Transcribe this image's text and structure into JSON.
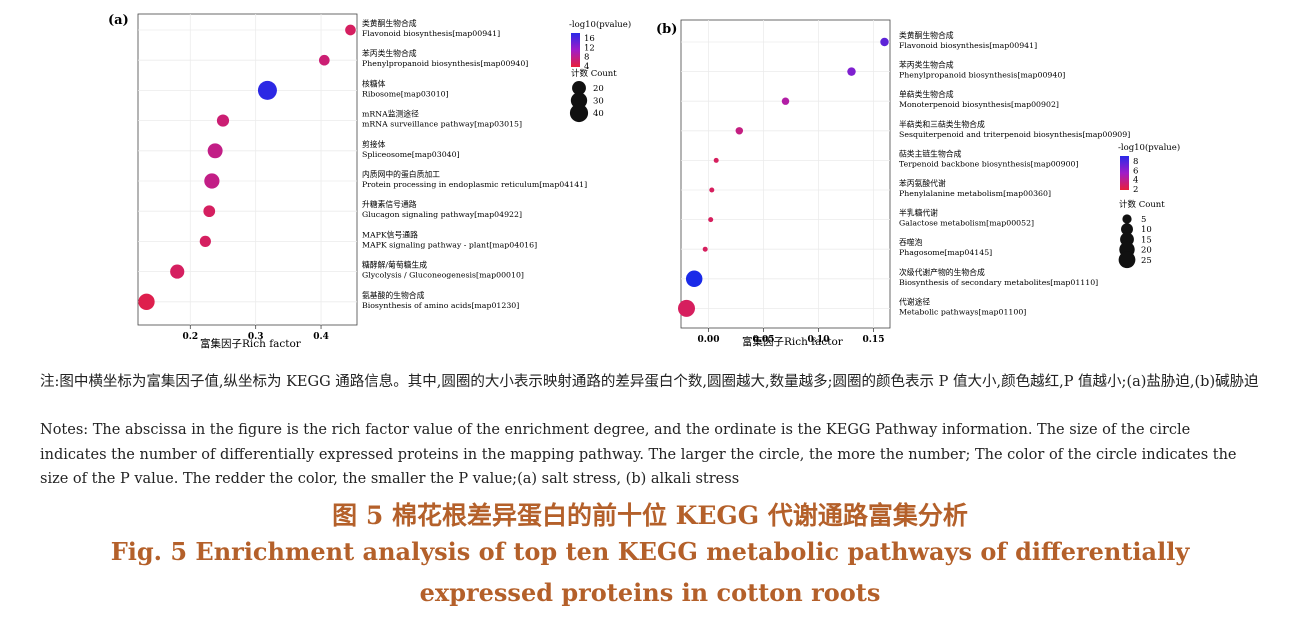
{
  "chart_data": [
    {
      "panel": "(a)",
      "type": "scatter",
      "xlabel": "富集因子Rich factor",
      "xticks": [
        "0.2",
        "0.3",
        "0.4"
      ],
      "xlim": [
        0.12,
        0.455
      ],
      "categories": [
        {
          "zh": "类黄酮生物合成",
          "en": "Flavonoid biosynthesis[map00941]"
        },
        {
          "zh": "苯丙类生物合成",
          "en": "Phenylpropanoid biosynthesis[map00940]"
        },
        {
          "zh": "核糖体",
          "en": "Ribosome[map03010]"
        },
        {
          "zh": "mRNA监测途径",
          "en": "mRNA surveillance pathway[map03015]"
        },
        {
          "zh": "剪接体",
          "en": "Spliceosome[map03040]"
        },
        {
          "zh": "内质网中的蛋白质加工",
          "en": "Protein processing in endoplasmic reticulum[map04141]"
        },
        {
          "zh": "升糖素信号通路",
          "en": "Glucagon signaling pathway[map04922]"
        },
        {
          "zh": "MAPK信号通路",
          "en": "MAPK signaling pathway - plant[map04016]"
        },
        {
          "zh": "糖酵解/葡萄糖生成",
          "en": "Glycolysis / Gluconeogenesis[map00010]"
        },
        {
          "zh": "氨基酸的生物合成",
          "en": "Biosynthesis of amino acids[map01230]"
        }
      ],
      "points": [
        {
          "x": 0.445,
          "count": 12,
          "neglog10p": 5
        },
        {
          "x": 0.405,
          "count": 12,
          "neglog10p": 6
        },
        {
          "x": 0.318,
          "count": 45,
          "neglog10p": 17
        },
        {
          "x": 0.25,
          "count": 15,
          "neglog10p": 6
        },
        {
          "x": 0.238,
          "count": 24,
          "neglog10p": 7
        },
        {
          "x": 0.233,
          "count": 25,
          "neglog10p": 7
        },
        {
          "x": 0.229,
          "count": 14,
          "neglog10p": 5
        },
        {
          "x": 0.223,
          "count": 13,
          "neglog10p": 5
        },
        {
          "x": 0.18,
          "count": 21,
          "neglog10p": 5
        },
        {
          "x": 0.133,
          "count": 30,
          "neglog10p": 4
        }
      ],
      "color_legend": {
        "title": "-log10(pvalue)",
        "ticks": [
          "16",
          "12",
          "8",
          "4"
        ],
        "min": 3,
        "max": 18
      },
      "size_legend": {
        "title": "计数 Count",
        "values": [
          20,
          30,
          40
        ]
      }
    },
    {
      "panel": "(b)",
      "type": "scatter",
      "xlabel": "富集因子Rich factor",
      "xticks": [
        "0.00",
        "0.05",
        "0.10",
        "0.15"
      ],
      "xlim": [
        -0.025,
        0.165
      ],
      "categories": [
        {
          "zh": "类黄酮生物合成",
          "en": "Flavonoid biosynthesis[map00941]"
        },
        {
          "zh": "苯丙类生物合成",
          "en": "Phenylpropanoid biosynthesis[map00940]"
        },
        {
          "zh": "单萜类生物合成",
          "en": "Monoterpenoid biosynthesis[map00902]"
        },
        {
          "zh": "半萜类和三萜类生物合成",
          "en": "Sesquiterpenoid and triterpenoid biosynthesis[map00909]"
        },
        {
          "zh": "萜类主链生物合成",
          "en": "Terpenoid backbone biosynthesis[map00900]"
        },
        {
          "zh": "苯丙氨酸代谢",
          "en": "Phenylalanine metabolism[map00360]"
        },
        {
          "zh": "半乳糖代谢",
          "en": "Galactose metabolism[map00052]"
        },
        {
          "zh": "吞噬泡",
          "en": "Phagosome[map04145]"
        },
        {
          "zh": "次级代谢产物的生物合成",
          "en": "Biosynthesis of secondary metabolites[map01110]"
        },
        {
          "zh": "代谢途径",
          "en": "Metabolic pathways[map01100]"
        }
      ],
      "points": [
        {
          "x": 0.16,
          "count": 4,
          "neglog10p": 7
        },
        {
          "x": 0.13,
          "count": 4,
          "neglog10p": 6
        },
        {
          "x": 0.07,
          "count": 3,
          "neglog10p": 4
        },
        {
          "x": 0.028,
          "count": 3,
          "neglog10p": 3
        },
        {
          "x": 0.007,
          "count": 2,
          "neglog10p": 2
        },
        {
          "x": 0.003,
          "count": 2,
          "neglog10p": 2
        },
        {
          "x": 0.002,
          "count": 2,
          "neglog10p": 2
        },
        {
          "x": -0.003,
          "count": 2,
          "neglog10p": 2
        },
        {
          "x": -0.013,
          "count": 24,
          "neglog10p": 9
        },
        {
          "x": -0.02,
          "count": 26,
          "neglog10p": 2
        }
      ],
      "color_legend": {
        "title": "-log10(pvalue)",
        "ticks": [
          "8",
          "6",
          "4",
          "2"
        ],
        "min": 1,
        "max": 9
      },
      "size_legend": {
        "title": "计数 Count",
        "values": [
          5,
          10,
          15,
          20,
          25
        ]
      }
    }
  ],
  "notes": {
    "zh": "注:图中横坐标为富集因子值,纵坐标为 KEGG 通路信息。其中,圆圈的大小表示映射通路的差异蛋白个数,圆圈越大,数量越多;圆圈的颜色表示 P 值大小,颜色越红,P 值越小;(a)盐胁迫,(b)碱胁迫",
    "en": "Notes: The abscissa in the figure is the rich factor value of the enrichment degree, and the ordinate is the KEGG Pathway information. The size of the circle indicates the number of differentially expressed proteins in the mapping pathway. The larger the circle, the more the number; The color of the circle indicates the size of the P value. The redder the color, the smaller the P value;(a) salt stress, (b) alkali stress"
  },
  "caption": {
    "zh": "图 5 棉花根差异蛋白的前十位 KEGG 代谢通路富集分析",
    "en_line1": "Fig. 5 Enrichment analysis of top ten KEGG metabolic pathways of differentially",
    "en_line2": "expressed proteins in cotton roots"
  }
}
